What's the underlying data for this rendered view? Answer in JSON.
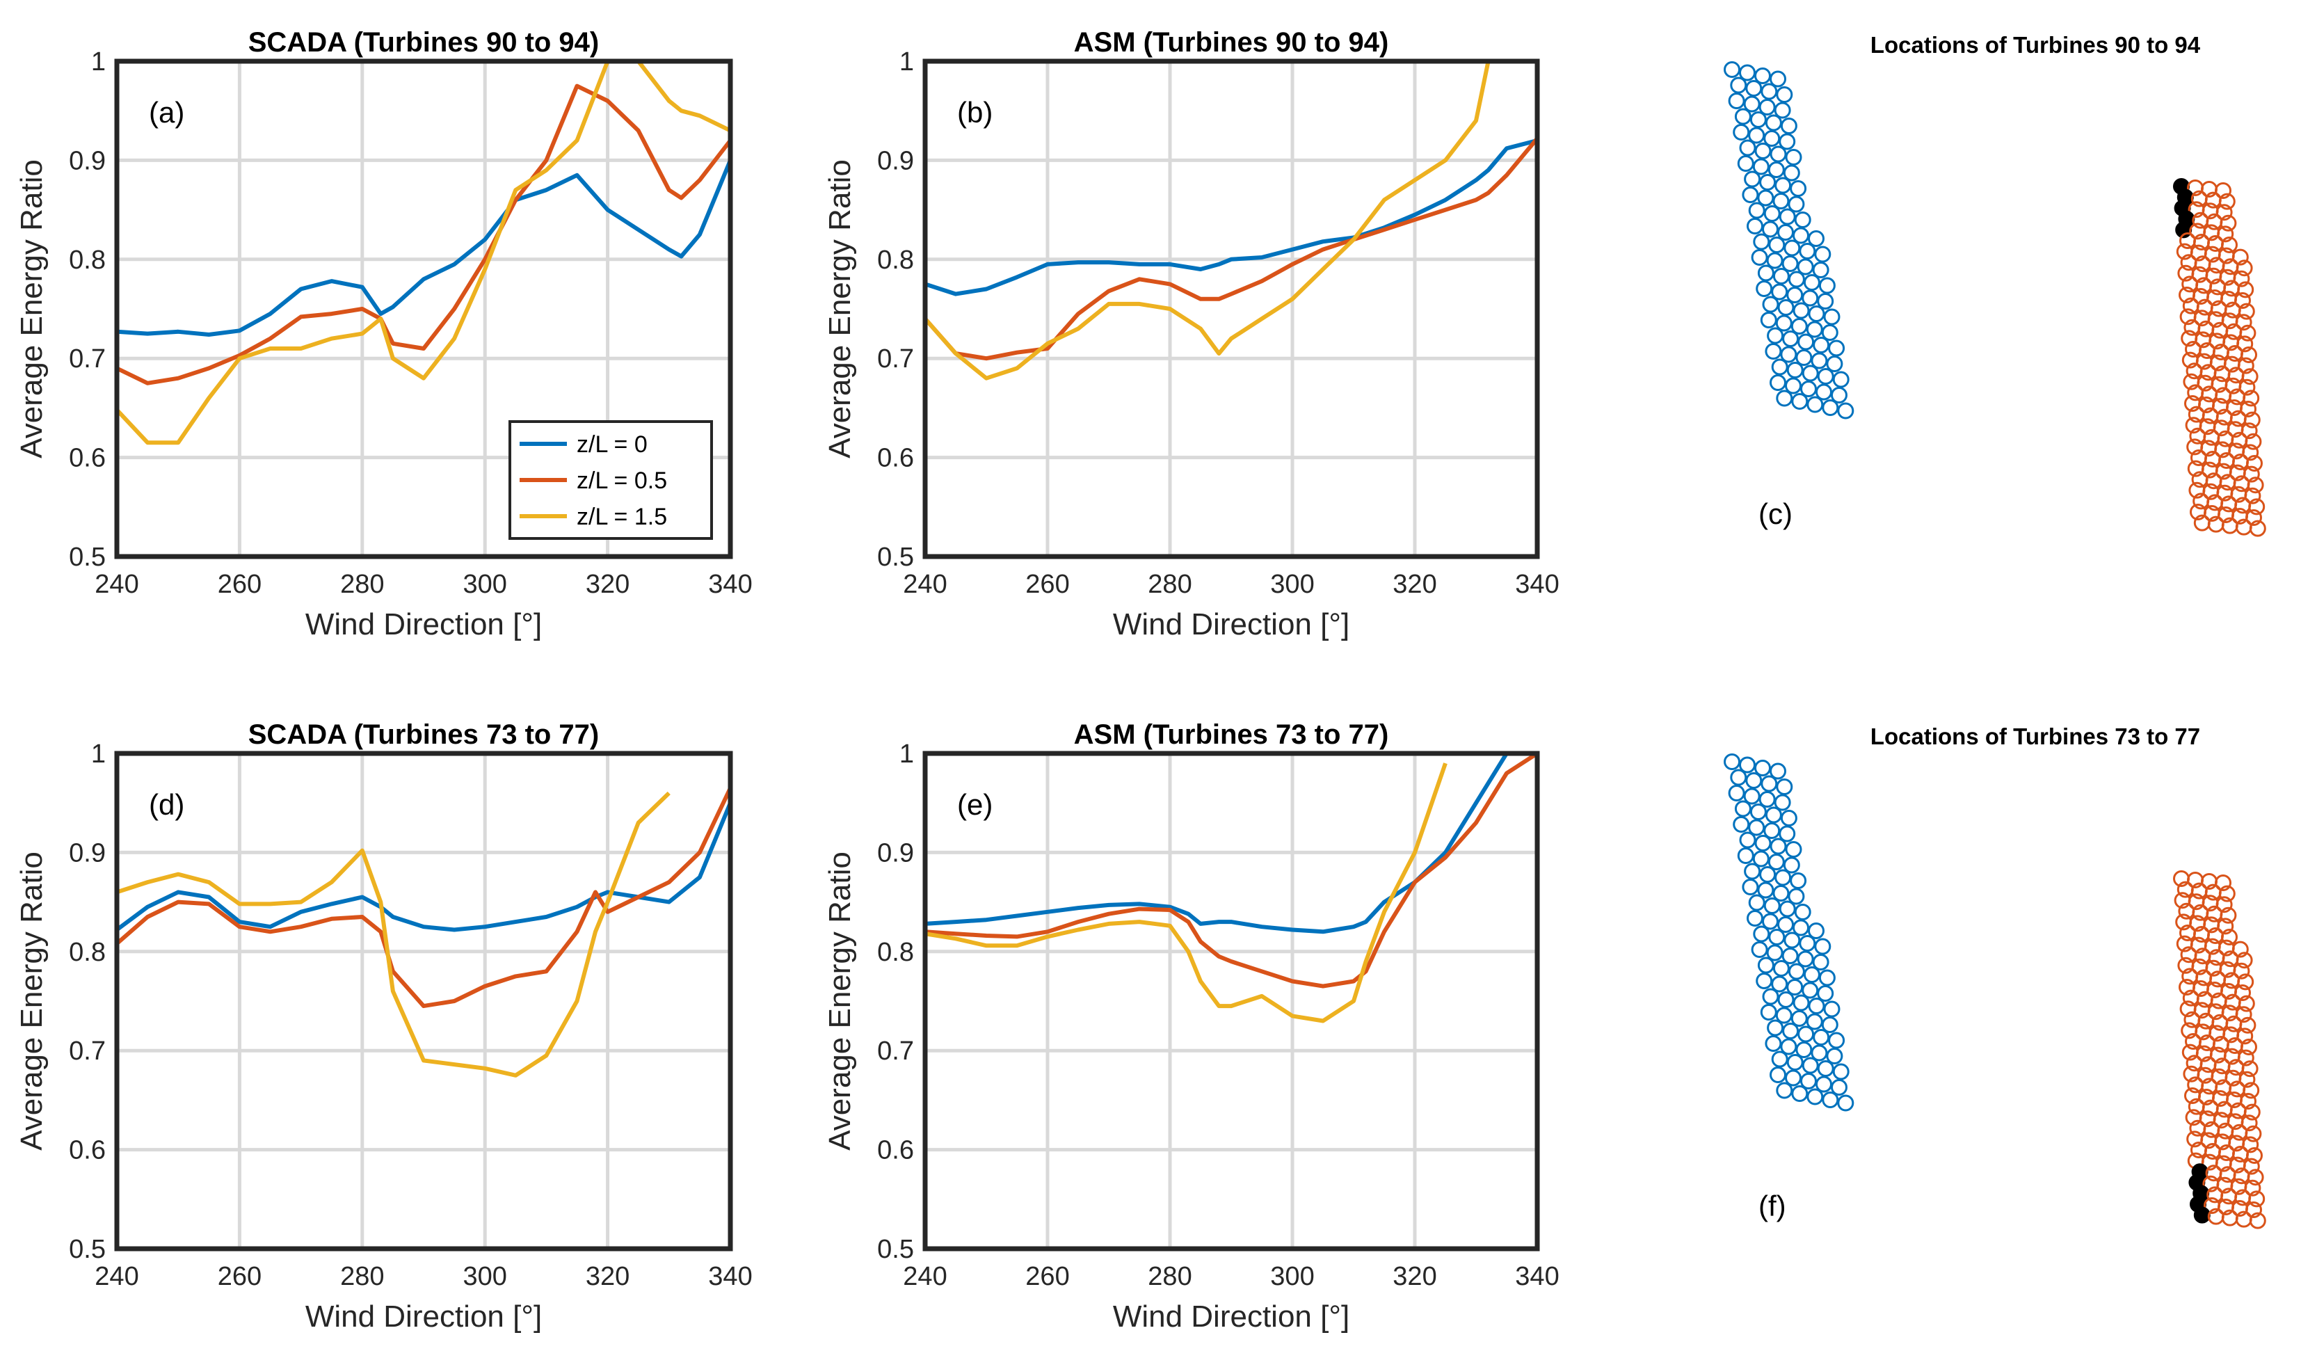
{
  "colors": {
    "series_1": "#0072BD",
    "series_2": "#D95319",
    "series_3": "#EDB120",
    "highlight": "#000000",
    "grid": "#d9d9d9"
  },
  "legend": {
    "placement": "bottom-right of panel (a)",
    "entries": [
      "z/L = 0",
      "z/L = 0.5",
      "z/L = 1.5"
    ]
  },
  "chart_data": [
    {
      "id": "a",
      "type": "line",
      "panel_label": "(a)",
      "title": "SCADA (Turbines 90 to 94)",
      "xlabel": "Wind Direction [°]",
      "ylabel": "Average Energy Ratio",
      "xlim": [
        240,
        340
      ],
      "ylim": [
        0.5,
        1
      ],
      "grid": true,
      "xticks": [
        "240",
        "260",
        "280",
        "300",
        "320",
        "340"
      ],
      "yticks": [
        "0.5",
        "0.6",
        "0.7",
        "0.8",
        "0.9",
        "1"
      ],
      "x": [
        240,
        245,
        250,
        255,
        260,
        265,
        270,
        275,
        280,
        283,
        285,
        290,
        295,
        300,
        305,
        310,
        315,
        320,
        325,
        330,
        332,
        335,
        340
      ],
      "series": [
        {
          "name": "z/L = 0",
          "values": [
            0.727,
            0.725,
            0.727,
            0.724,
            0.728,
            0.745,
            0.77,
            0.778,
            0.772,
            0.745,
            0.752,
            0.78,
            0.795,
            0.82,
            0.86,
            0.87,
            0.885,
            0.85,
            0.83,
            0.81,
            0.803,
            0.825,
            0.9
          ]
        },
        {
          "name": "z/L = 0.5",
          "values": [
            0.69,
            0.675,
            0.68,
            0.69,
            0.703,
            0.72,
            0.742,
            0.745,
            0.75,
            0.74,
            0.715,
            0.71,
            0.75,
            0.8,
            0.86,
            0.9,
            0.975,
            0.96,
            0.93,
            0.87,
            0.862,
            0.88,
            0.92
          ]
        },
        {
          "name": "z/L = 1.5",
          "values": [
            0.648,
            0.615,
            0.615,
            0.66,
            0.7,
            0.71,
            0.71,
            0.72,
            0.725,
            0.74,
            0.7,
            0.68,
            0.72,
            0.79,
            0.87,
            0.89,
            0.92,
            1.0,
            1.0,
            0.96,
            0.95,
            0.945,
            0.93
          ]
        }
      ]
    },
    {
      "id": "b",
      "type": "line",
      "panel_label": "(b)",
      "title": "ASM (Turbines 90 to 94)",
      "xlabel": "Wind Direction [°]",
      "ylabel": "Average Energy Ratio",
      "xlim": [
        240,
        340
      ],
      "ylim": [
        0.5,
        1
      ],
      "grid": true,
      "xticks": [
        "240",
        "260",
        "280",
        "300",
        "320",
        "340"
      ],
      "yticks": [
        "0.5",
        "0.6",
        "0.7",
        "0.8",
        "0.9",
        "1"
      ],
      "x": [
        240,
        245,
        250,
        255,
        260,
        265,
        270,
        275,
        280,
        285,
        288,
        290,
        295,
        300,
        305,
        310,
        315,
        320,
        325,
        330,
        332,
        335,
        340
      ],
      "series": [
        {
          "name": "z/L = 0",
          "values": [
            0.775,
            0.765,
            0.77,
            0.782,
            0.795,
            0.797,
            0.797,
            0.795,
            0.795,
            0.79,
            0.795,
            0.8,
            0.802,
            0.81,
            0.818,
            0.822,
            0.832,
            0.845,
            0.86,
            0.88,
            0.89,
            0.912,
            0.92
          ]
        },
        {
          "name": "z/L = 0.5",
          "values": [
            0.74,
            0.705,
            0.7,
            0.706,
            0.71,
            0.745,
            0.768,
            0.78,
            0.775,
            0.76,
            0.76,
            0.765,
            0.778,
            0.795,
            0.81,
            0.82,
            0.83,
            0.84,
            0.85,
            0.86,
            0.867,
            0.885,
            0.922
          ]
        },
        {
          "name": "z/L = 1.5",
          "values": [
            0.74,
            0.705,
            0.68,
            0.69,
            0.715,
            0.73,
            0.755,
            0.755,
            0.75,
            0.73,
            0.705,
            0.72,
            0.74,
            0.76,
            0.79,
            0.82,
            0.86,
            0.88,
            0.9,
            0.94,
            1.0,
            null,
            null
          ]
        }
      ]
    },
    {
      "id": "d",
      "type": "line",
      "panel_label": "(d)",
      "title": "SCADA (Turbines 73 to 77)",
      "xlabel": "Wind Direction [°]",
      "ylabel": "Average Energy Ratio",
      "xlim": [
        240,
        340
      ],
      "ylim": [
        0.5,
        1
      ],
      "grid": true,
      "xticks": [
        "240",
        "260",
        "280",
        "300",
        "320",
        "340"
      ],
      "yticks": [
        "0.5",
        "0.6",
        "0.7",
        "0.8",
        "0.9",
        "1"
      ],
      "x": [
        240,
        245,
        250,
        255,
        260,
        265,
        270,
        275,
        280,
        283,
        285,
        290,
        295,
        300,
        305,
        310,
        315,
        318,
        320,
        325,
        330,
        335,
        340
      ],
      "series": [
        {
          "name": "z/L = 0",
          "values": [
            0.822,
            0.845,
            0.86,
            0.855,
            0.83,
            0.825,
            0.84,
            0.848,
            0.855,
            0.845,
            0.835,
            0.825,
            0.822,
            0.825,
            0.83,
            0.835,
            0.845,
            0.855,
            0.86,
            0.855,
            0.85,
            0.875,
            0.95
          ]
        },
        {
          "name": "z/L = 0.5",
          "values": [
            0.808,
            0.835,
            0.85,
            0.848,
            0.825,
            0.82,
            0.825,
            0.833,
            0.835,
            0.82,
            0.78,
            0.745,
            0.75,
            0.765,
            0.775,
            0.78,
            0.82,
            0.86,
            0.84,
            0.855,
            0.87,
            0.9,
            0.965
          ]
        },
        {
          "name": "z/L = 1.5",
          "values": [
            0.86,
            0.87,
            0.878,
            0.87,
            0.848,
            0.848,
            0.85,
            0.87,
            0.902,
            0.85,
            0.76,
            0.69,
            0.686,
            0.682,
            0.675,
            0.695,
            0.75,
            0.82,
            0.85,
            0.93,
            0.96,
            null,
            null
          ]
        }
      ]
    },
    {
      "id": "e",
      "type": "line",
      "panel_label": "(e)",
      "title": "ASM (Turbines 73 to 77)",
      "xlabel": "Wind Direction [°]",
      "ylabel": "Average Energy Ratio",
      "xlim": [
        240,
        340
      ],
      "ylim": [
        0.5,
        1
      ],
      "grid": true,
      "xticks": [
        "240",
        "260",
        "280",
        "300",
        "320",
        "340"
      ],
      "yticks": [
        "0.5",
        "0.6",
        "0.7",
        "0.8",
        "0.9",
        "1"
      ],
      "x": [
        240,
        245,
        250,
        255,
        260,
        265,
        270,
        275,
        280,
        283,
        285,
        288,
        290,
        295,
        300,
        305,
        310,
        312,
        315,
        320,
        325,
        330,
        335,
        340
      ],
      "series": [
        {
          "name": "z/L = 0",
          "values": [
            0.828,
            0.83,
            0.832,
            0.836,
            0.84,
            0.844,
            0.847,
            0.848,
            0.845,
            0.838,
            0.828,
            0.83,
            0.83,
            0.825,
            0.822,
            0.82,
            0.825,
            0.83,
            0.85,
            0.87,
            0.9,
            0.95,
            1.0,
            null
          ]
        },
        {
          "name": "z/L = 0.5",
          "values": [
            0.82,
            0.818,
            0.816,
            0.815,
            0.82,
            0.83,
            0.838,
            0.843,
            0.842,
            0.83,
            0.81,
            0.795,
            0.79,
            0.78,
            0.77,
            0.765,
            0.77,
            0.78,
            0.82,
            0.87,
            0.895,
            0.93,
            0.98,
            1.0
          ]
        },
        {
          "name": "z/L = 1.5",
          "values": [
            0.818,
            0.813,
            0.806,
            0.806,
            0.815,
            0.822,
            0.828,
            0.83,
            0.826,
            0.8,
            0.77,
            0.745,
            0.745,
            0.755,
            0.735,
            0.73,
            0.75,
            0.79,
            0.84,
            0.9,
            0.99,
            null,
            null,
            null
          ]
        }
      ]
    }
  ],
  "maps": [
    {
      "id": "c",
      "title": "Locations of Turbines 90 to 94",
      "panel_label": "(c)",
      "highlight_rows": [
        0,
        1,
        2,
        3,
        4
      ]
    },
    {
      "id": "f",
      "title": "Locations of Turbines 73 to 77",
      "panel_label": "(f)",
      "highlight_rows": [
        27,
        28,
        29,
        30,
        31
      ]
    }
  ]
}
